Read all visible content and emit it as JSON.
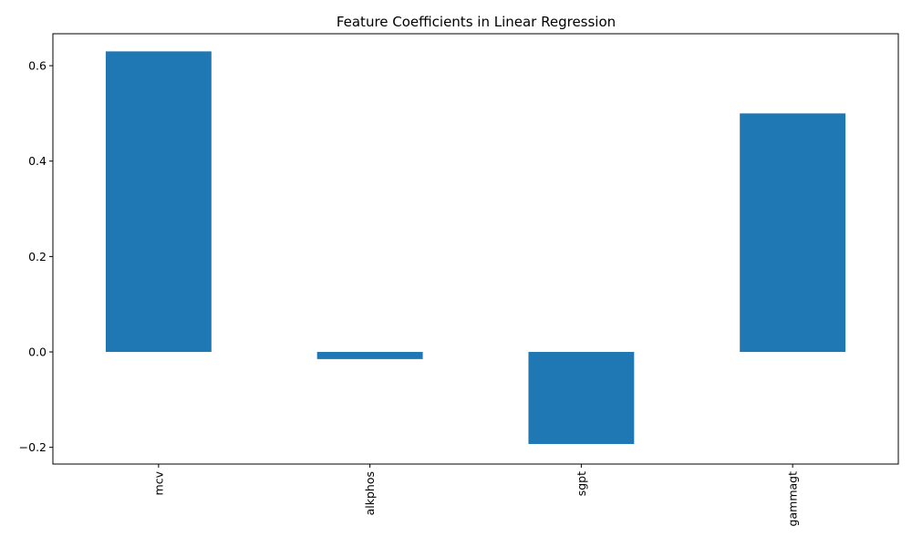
{
  "chart_data": {
    "type": "bar",
    "title": "Feature Coefficients in Linear Regression",
    "xlabel": "",
    "ylabel": "",
    "categories": [
      "mcv",
      "alkphos",
      "sgpt",
      "gammagt"
    ],
    "values": [
      0.63,
      -0.015,
      -0.193,
      0.5
    ],
    "ylim": [
      -0.235,
      0.667
    ],
    "yticks": [
      -0.2,
      0.0,
      0.2,
      0.4,
      0.6
    ],
    "ytick_labels": [
      "−0.2",
      "0.0",
      "0.2",
      "0.4",
      "0.6"
    ],
    "bar_color": "#1f77b4",
    "grid": false,
    "legend": "none"
  }
}
